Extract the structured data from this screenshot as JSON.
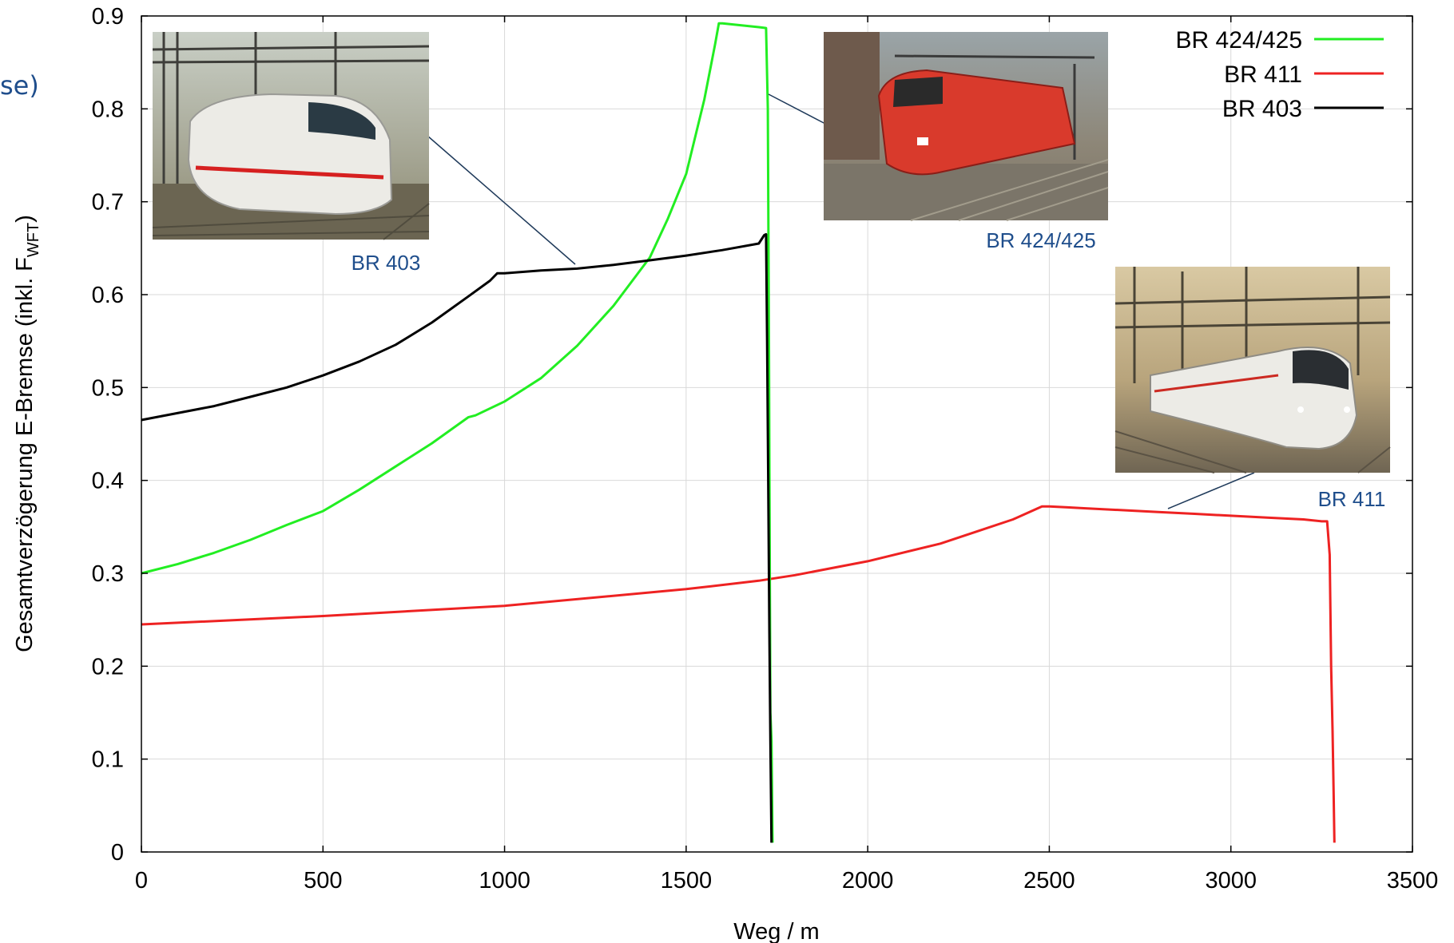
{
  "slide_fragment": "se)",
  "chart_data": {
    "type": "line",
    "xlabel": "Weg / m",
    "ylabel": "Gesamtverzögerung E-Bremse (inkl. F",
    "ylabel_sub": "WFT",
    "ylabel_close": ")",
    "xlim": [
      0,
      3500
    ],
    "ylim": [
      0,
      0.9
    ],
    "xticks": [
      0,
      500,
      1000,
      1500,
      2000,
      2500,
      3000,
      3500
    ],
    "xtick_labels": [
      "0",
      "500",
      "1000",
      "1500",
      "2000",
      "2500",
      "3000",
      "3500"
    ],
    "yticks": [
      0,
      0.1,
      0.2,
      0.3,
      0.4,
      0.5,
      0.6,
      0.7,
      0.8,
      0.9
    ],
    "ytick_labels": [
      "0",
      "0.1",
      "0.2",
      "0.3",
      "0.4",
      "0.5",
      "0.6",
      "0.7",
      "0.8",
      "0.9"
    ],
    "grid": true,
    "legend_position": "top-right",
    "series": [
      {
        "name": "BR 424/425",
        "color": "#22ee22",
        "x": [
          0,
          100,
          200,
          300,
          400,
          500,
          600,
          700,
          800,
          900,
          920,
          1000,
          1100,
          1200,
          1300,
          1400,
          1450,
          1500,
          1550,
          1580,
          1590,
          1600,
          1700,
          1720,
          1725,
          1728,
          1730,
          1732,
          1735,
          1738
        ],
        "y": [
          0.3,
          0.31,
          0.322,
          0.336,
          0.352,
          0.367,
          0.39,
          0.415,
          0.44,
          0.468,
          0.47,
          0.485,
          0.51,
          0.545,
          0.588,
          0.64,
          0.682,
          0.73,
          0.81,
          0.87,
          0.892,
          0.892,
          0.888,
          0.887,
          0.8,
          0.55,
          0.34,
          0.15,
          0.12,
          0.01
        ]
      },
      {
        "name": "BR 411",
        "color": "#ee2222",
        "x": [
          0,
          500,
          1000,
          1500,
          1700,
          1800,
          2000,
          2200,
          2300,
          2400,
          2480,
          2500,
          2550,
          2600,
          2700,
          2800,
          2900,
          3000,
          3100,
          3200,
          3250,
          3265,
          3272,
          3276,
          3280,
          3283,
          3285
        ],
        "y": [
          0.245,
          0.254,
          0.265,
          0.283,
          0.292,
          0.298,
          0.313,
          0.332,
          0.345,
          0.358,
          0.372,
          0.372,
          0.371,
          0.37,
          0.368,
          0.366,
          0.364,
          0.362,
          0.36,
          0.358,
          0.356,
          0.356,
          0.32,
          0.2,
          0.13,
          0.06,
          0.01
        ]
      },
      {
        "name": "BR 403",
        "color": "#000000",
        "x": [
          0,
          200,
          300,
          400,
          500,
          600,
          700,
          800,
          900,
          960,
          980,
          1000,
          1100,
          1200,
          1300,
          1400,
          1500,
          1600,
          1700,
          1715,
          1720,
          1723,
          1726,
          1729,
          1732,
          1735
        ],
        "y": [
          0.465,
          0.48,
          0.49,
          0.5,
          0.513,
          0.528,
          0.546,
          0.57,
          0.598,
          0.615,
          0.623,
          0.623,
          0.626,
          0.628,
          0.632,
          0.637,
          0.642,
          0.648,
          0.655,
          0.664,
          0.665,
          0.55,
          0.4,
          0.24,
          0.12,
          0.01
        ]
      }
    ],
    "photo_captions": [
      "BR 403",
      "BR 424/425",
      "BR 411"
    ]
  },
  "colors": {
    "axis": "#000000",
    "grid": "#d9d9d9",
    "caption": "#1f4e8c",
    "leader": "#1f3a5a"
  }
}
